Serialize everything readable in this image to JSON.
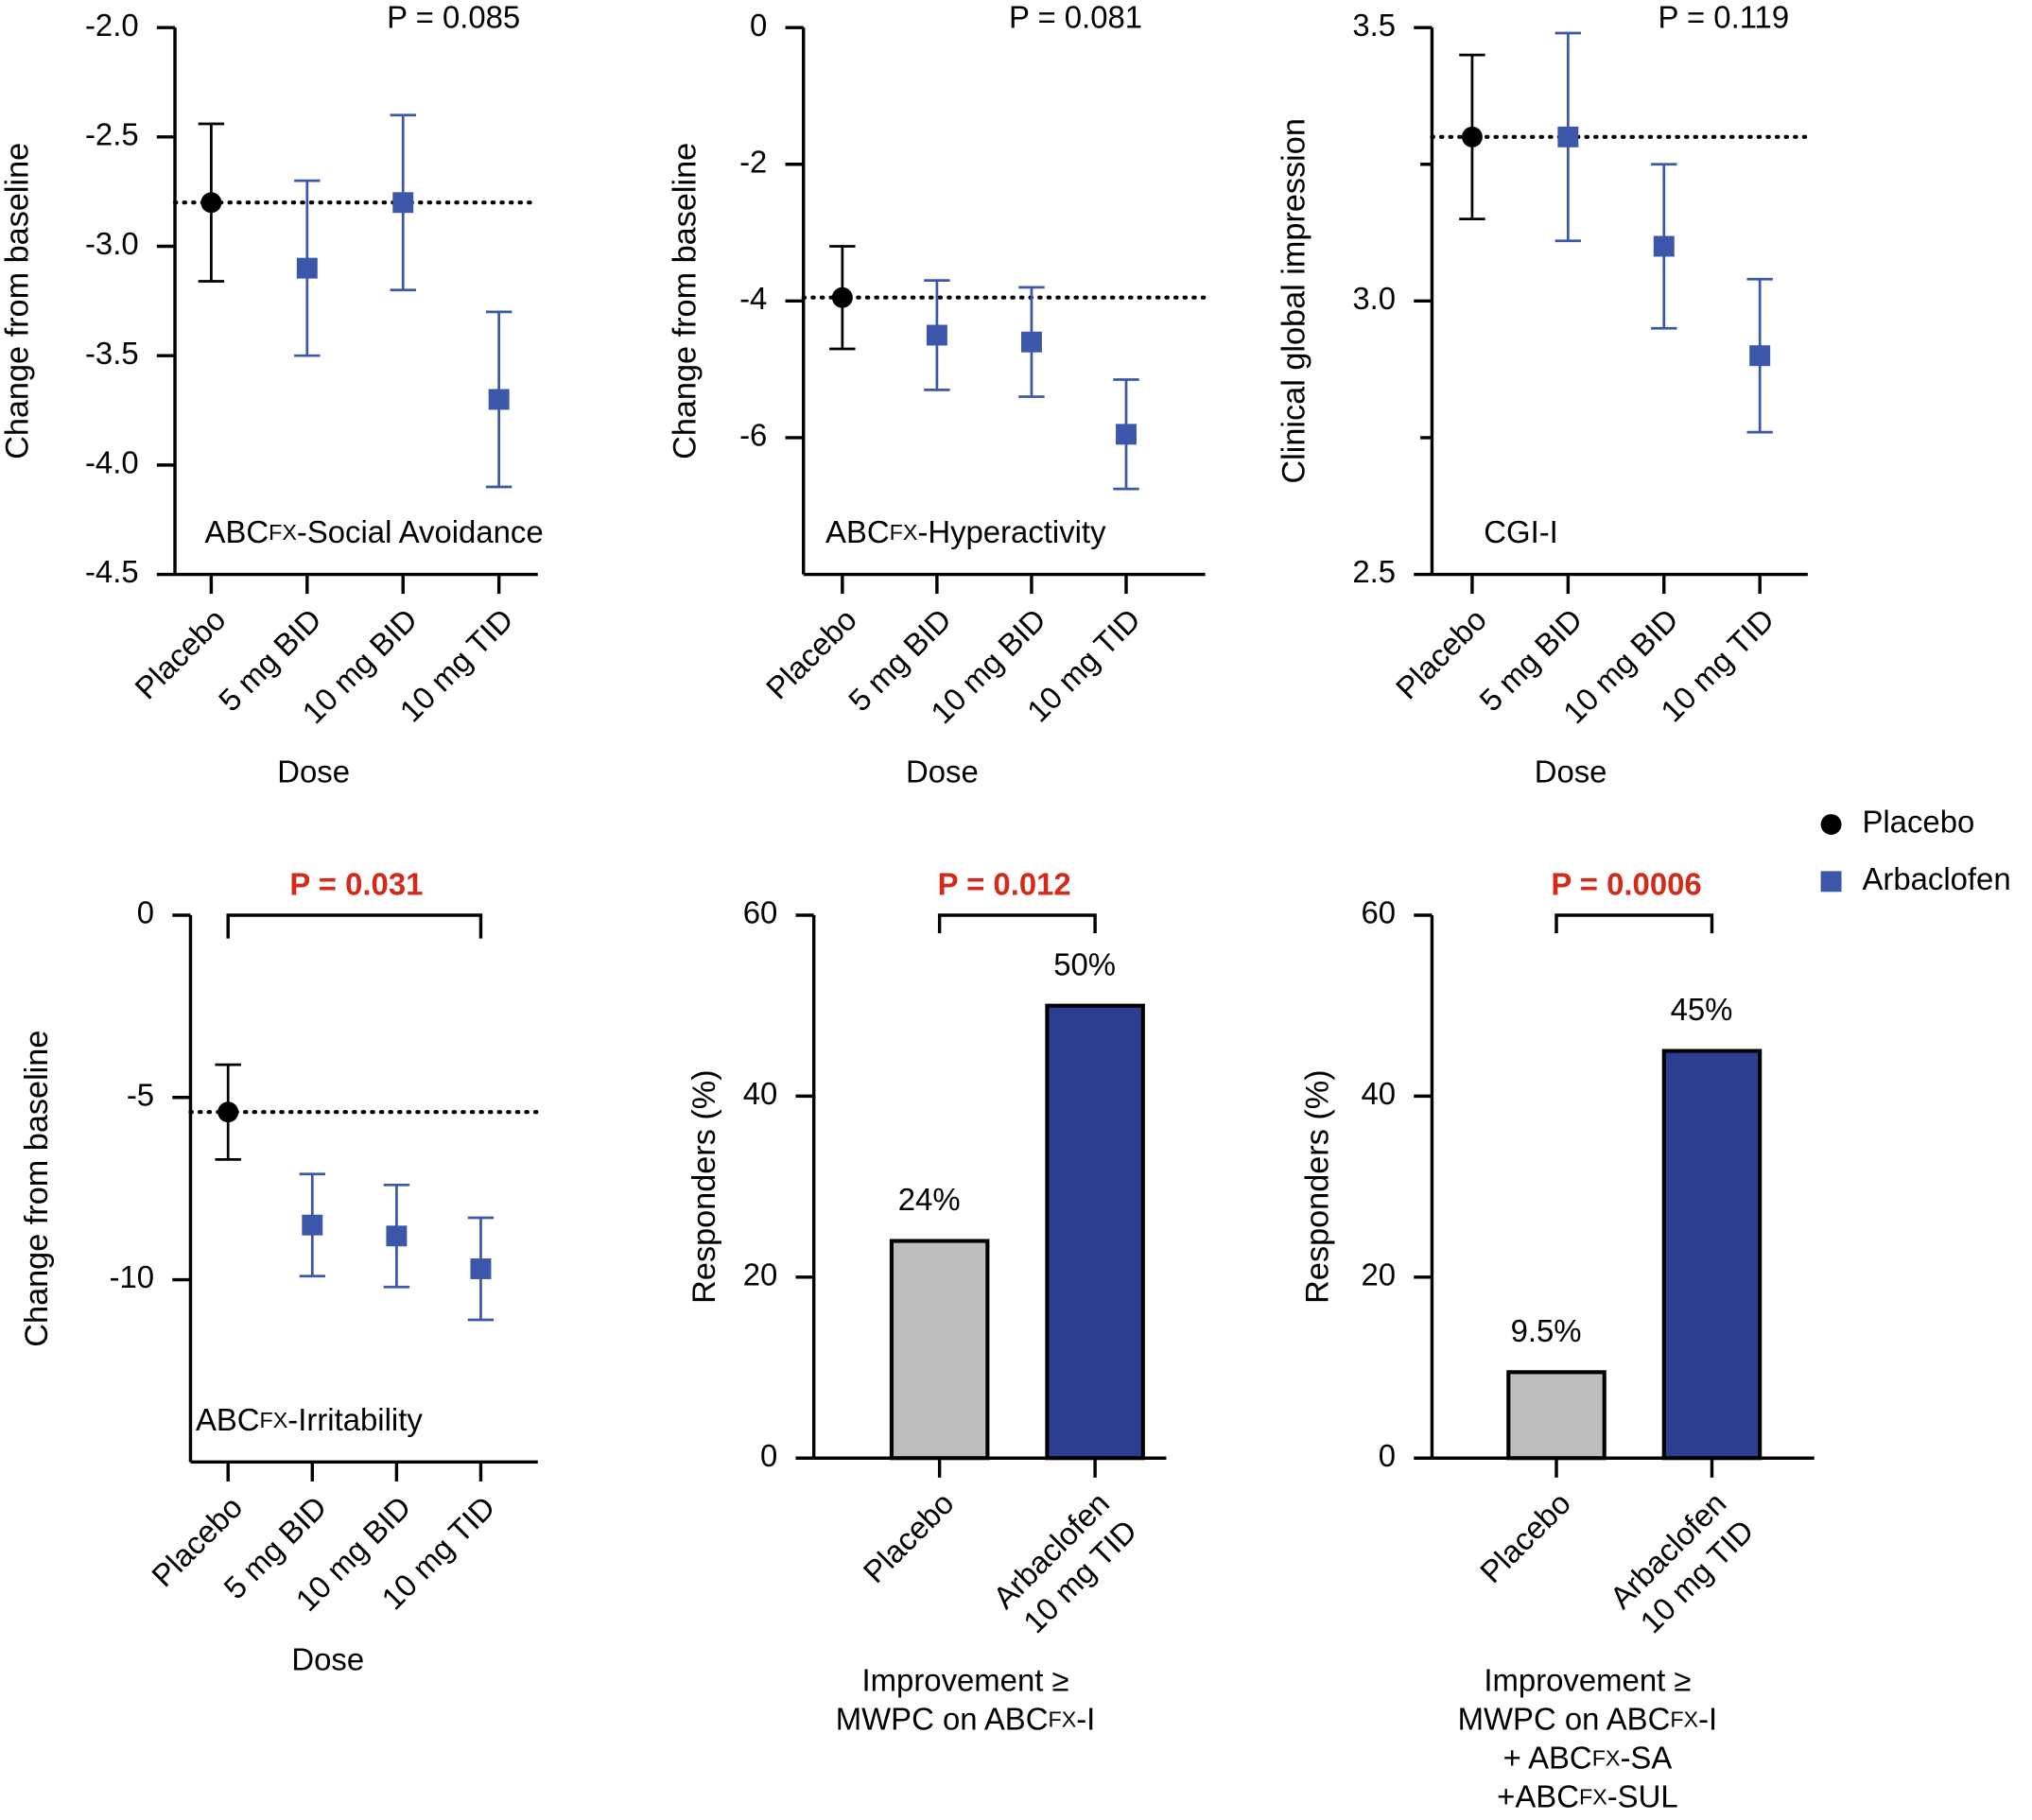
{
  "legend": [
    {
      "name": "Placebo",
      "color": "#000000",
      "marker": "circle"
    },
    {
      "name": "Arbaclofen",
      "color": "#3c57a9",
      "marker": "square"
    }
  ],
  "chart_data": [
    {
      "type": "errorbar",
      "ylabel": "Change from baseline",
      "xlabel": [
        "Dose"
      ],
      "annotation": [
        "ABC",
        "FX",
        "-Social Avoidance"
      ],
      "p_value": "P = 0.085",
      "p_color": "#000000",
      "p_bracket": false,
      "reference_line": true,
      "categories": [
        "Placebo",
        "5 mg BID",
        "10 mg BID",
        "10 mg TID"
      ],
      "values": [
        -2.8,
        -3.1,
        -2.8,
        -3.7
      ],
      "errors": [
        0.36,
        0.4,
        0.4,
        0.4
      ],
      "colors": [
        "#000000",
        "#3c57a9",
        "#3c57a9",
        "#3c57a9"
      ],
      "markers": [
        "circle",
        "square",
        "square",
        "square"
      ],
      "ylim": [
        -4.5,
        -2
      ],
      "yticks": [
        {
          "value": -2,
          "label": "-2.0"
        },
        -2.5,
        {
          "value": -3,
          "label": "-3.0"
        },
        -3.5,
        {
          "value": -4,
          "label": "-4.0"
        },
        -4.5
      ]
    },
    {
      "type": "errorbar",
      "ylabel": "Change from baseline",
      "xlabel": [
        "Dose"
      ],
      "annotation": [
        "ABC",
        "FX",
        "-Hyperactivity"
      ],
      "p_value": "P = 0.081",
      "p_color": "#000000",
      "p_bracket": false,
      "reference_line": true,
      "categories": [
        "Placebo",
        "5 mg BID",
        "10 mg BID",
        "10 mg TID"
      ],
      "values": [
        -3.95,
        -4.5,
        -4.6,
        -5.95
      ],
      "errors": [
        0.75,
        0.8,
        0.8,
        0.8
      ],
      "colors": [
        "#000000",
        "#3c57a9",
        "#3c57a9",
        "#3c57a9"
      ],
      "markers": [
        "circle",
        "square",
        "square",
        "square"
      ],
      "ylim": [
        -8,
        0
      ],
      "yticks": [
        0,
        -2,
        -4,
        -6
      ]
    },
    {
      "type": "errorbar",
      "ylabel": "Clinical global impression",
      "xlabel": [
        "Dose"
      ],
      "annotation": [
        "CGI-I"
      ],
      "p_value": "P = 0.119",
      "p_color": "#000000",
      "p_bracket": false,
      "reference_line": true,
      "categories": [
        "Placebo",
        "5 mg BID",
        "10 mg BID",
        "10 mg TID"
      ],
      "values": [
        3.3,
        3.3,
        3.1,
        2.9
      ],
      "errors": [
        0.15,
        0.19,
        0.15,
        0.14
      ],
      "colors": [
        "#000000",
        "#3c57a9",
        "#3c57a9",
        "#3c57a9"
      ],
      "markers": [
        "circle",
        "square",
        "square",
        "square"
      ],
      "ylim": [
        2.5,
        3.5
      ],
      "yticks": [
        2.5,
        {
          "value": 3,
          "label": "3.0"
        },
        3.5
      ],
      "minor_yticks": [
        2.75,
        3.25
      ]
    },
    {
      "type": "errorbar",
      "ylabel": "Change from baseline",
      "xlabel": [
        "Dose"
      ],
      "annotation": [
        "ABC",
        "FX",
        "-Irritability"
      ],
      "p_value": "P = 0.031",
      "p_color": "#d42a1a",
      "p_bracket": true,
      "reference_line": true,
      "categories": [
        "Placebo",
        "5 mg BID",
        "10 mg BID",
        "10 mg TID"
      ],
      "values": [
        -5.4,
        -8.5,
        -8.8,
        -9.7
      ],
      "errors": [
        1.3,
        1.4,
        1.4,
        1.4
      ],
      "colors": [
        "#000000",
        "#3c57a9",
        "#3c57a9",
        "#3c57a9"
      ],
      "markers": [
        "circle",
        "square",
        "square",
        "square"
      ],
      "ylim": [
        -15,
        0
      ],
      "yticks": [
        0,
        -5,
        -10
      ]
    },
    {
      "type": "bar",
      "ylabel": "Responders (%)",
      "xlabel": [
        [
          "Improvement ≥"
        ],
        [
          "MWPC on ABC",
          "FX",
          "-I"
        ]
      ],
      "p_value": "P = 0.012",
      "p_color": "#d42a1a",
      "p_bracket": true,
      "categories": [
        [
          "Placebo"
        ],
        [
          "Arbaclofen",
          "10 mg TID"
        ]
      ],
      "values": [
        24,
        50
      ],
      "value_labels": [
        "24%",
        "50%"
      ],
      "colors": [
        "#bdbdbd",
        "#2c3e8f"
      ],
      "ylim": [
        0,
        60
      ],
      "yticks": [
        0,
        20,
        40,
        60
      ]
    },
    {
      "type": "bar",
      "ylabel": "Responders (%)",
      "xlabel": [
        [
          "Improvement ≥"
        ],
        [
          "MWPC on ABC",
          "FX",
          "-I"
        ],
        [
          "+ ABC",
          "FX",
          "-SA"
        ],
        [
          "+ABC",
          "FX",
          "-SUL"
        ]
      ],
      "p_value": "P = 0.0006",
      "p_color": "#d42a1a",
      "p_bracket": true,
      "categories": [
        [
          "Placebo"
        ],
        [
          "Arbaclofen",
          "10 mg TID"
        ]
      ],
      "values": [
        9.5,
        45
      ],
      "value_labels": [
        "9.5%",
        "45%"
      ],
      "colors": [
        "#bdbdbd",
        "#2c3e8f"
      ],
      "ylim": [
        0,
        60
      ],
      "yticks": [
        0,
        20,
        40,
        60
      ]
    }
  ]
}
